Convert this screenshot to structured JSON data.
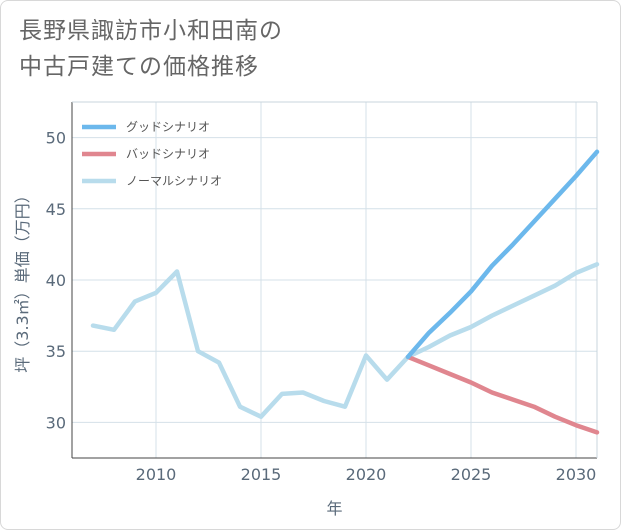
{
  "title_lines": [
    "長野県諏訪市小和田南の",
    "中古戸建ての価格推移"
  ],
  "chart_data": {
    "type": "line",
    "xlabel": "年",
    "ylabel": "坪（3.3㎡）単価（万円）",
    "xlim": [
      2006,
      2031
    ],
    "ylim": [
      27.5,
      52.5
    ],
    "xticks": [
      2010,
      2015,
      2020,
      2025,
      2030
    ],
    "yticks": [
      30,
      35,
      40,
      45,
      50
    ],
    "grid": true,
    "legend_position": "top-left",
    "series": [
      {
        "name": "グッドシナリオ",
        "color": "#6cb8ec",
        "x": [
          2022,
          2023,
          2024,
          2025,
          2026,
          2027,
          2028,
          2029,
          2030,
          2031
        ],
        "y": [
          34.6,
          36.3,
          37.7,
          39.2,
          41.0,
          42.5,
          44.1,
          45.7,
          47.3,
          49.0
        ]
      },
      {
        "name": "バッドシナリオ",
        "color": "#e0868f",
        "x": [
          2022,
          2023,
          2024,
          2025,
          2026,
          2027,
          2028,
          2029,
          2030,
          2031
        ],
        "y": [
          34.6,
          34.0,
          33.4,
          32.8,
          32.1,
          31.6,
          31.1,
          30.4,
          29.8,
          29.3
        ]
      },
      {
        "name": "ノーマルシナリオ",
        "color": "#b8dcec",
        "x": [
          2007,
          2008,
          2009,
          2010,
          2011,
          2012,
          2013,
          2014,
          2015,
          2016,
          2017,
          2018,
          2019,
          2020,
          2021,
          2022,
          2023,
          2024,
          2025,
          2026,
          2027,
          2028,
          2029,
          2030,
          2031
        ],
        "y": [
          36.8,
          36.5,
          38.5,
          39.1,
          40.6,
          35.0,
          34.2,
          31.1,
          30.4,
          32.0,
          32.1,
          31.5,
          31.1,
          34.7,
          33.0,
          34.6,
          35.3,
          36.1,
          36.7,
          37.5,
          38.2,
          38.9,
          39.6,
          40.5,
          41.1
        ]
      }
    ]
  }
}
